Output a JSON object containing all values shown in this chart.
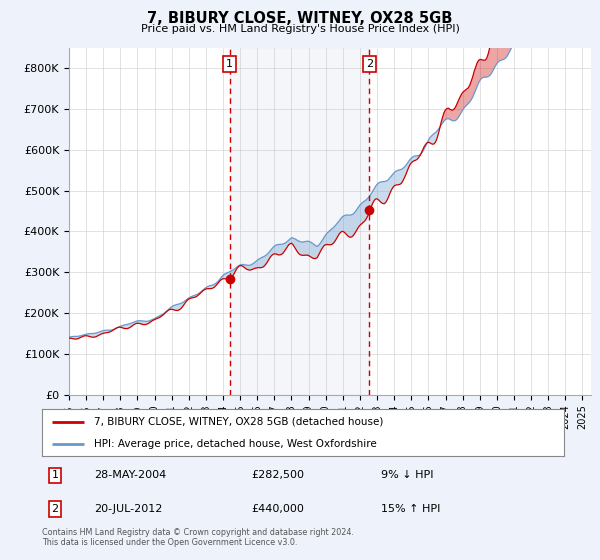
{
  "title": "7, BIBURY CLOSE, WITNEY, OX28 5GB",
  "subtitle": "Price paid vs. HM Land Registry's House Price Index (HPI)",
  "red_label": "7, BIBURY CLOSE, WITNEY, OX28 5GB (detached house)",
  "blue_label": "HPI: Average price, detached house, West Oxfordshire",
  "marker1_date": "28-MAY-2004",
  "marker1_price": 282500,
  "marker1_pct": "9% ↓ HPI",
  "marker2_date": "20-JUL-2012",
  "marker2_price": 440000,
  "marker2_pct": "15% ↑ HPI",
  "footer": "Contains HM Land Registry data © Crown copyright and database right 2024.\nThis data is licensed under the Open Government Licence v3.0.",
  "ylim": [
    0,
    850000
  ],
  "xlim_start": 1995,
  "xlim_end": 2025.5,
  "background_color": "#eef2fa",
  "plot_bg": "#ffffff",
  "red_color": "#cc0000",
  "blue_color": "#6699cc",
  "dashed_color": "#cc0000",
  "m1_year": 2004.38,
  "m2_year": 2012.55,
  "yticks": [
    0,
    100000,
    200000,
    300000,
    400000,
    500000,
    600000,
    700000,
    800000
  ],
  "ylabels": [
    "£0",
    "£100K",
    "£200K",
    "£300K",
    "£400K",
    "£500K",
    "£600K",
    "£700K",
    "£800K"
  ]
}
